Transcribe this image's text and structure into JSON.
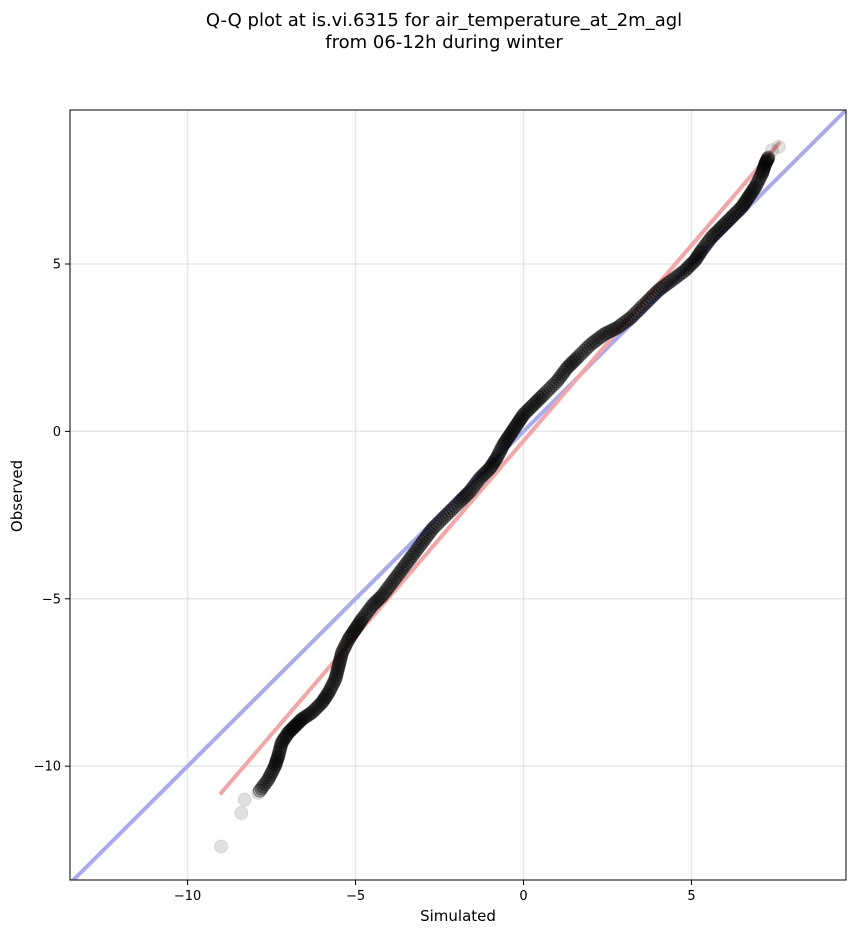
{
  "chart_data": {
    "type": "scatter",
    "title_lines": [
      "Q-Q plot at is.vi.6315 for air_temperature_at_2m_agl",
      "from 06-12h during winter"
    ],
    "xlabel": "Simulated",
    "ylabel": "Observed",
    "xlim": [
      -13.5,
      9.6
    ],
    "ylim": [
      -13.4,
      9.6
    ],
    "xticks": [
      -10,
      -5,
      0,
      5
    ],
    "yticks": [
      -10,
      -5,
      0,
      5
    ],
    "xtick_labels": [
      "−10",
      "−5",
      "0",
      "5"
    ],
    "ytick_labels": [
      "−10",
      "−5",
      "0",
      "5"
    ],
    "grid": true,
    "reference_line": {
      "description": "1:1 line",
      "color": "#aaaaf0",
      "points": [
        [
          -13.5,
          -13.5
        ],
        [
          9.6,
          9.6
        ]
      ]
    },
    "fit_line": {
      "color": "#f4a6a6",
      "points": [
        [
          -9.0,
          -10.8
        ],
        [
          7.6,
          8.6
        ]
      ]
    },
    "point_color": "#000000",
    "quantiles": [
      [
        -9.0,
        -12.4
      ],
      [
        -8.4,
        -11.4
      ],
      [
        -8.3,
        -11.0
      ],
      [
        -7.9,
        -10.8
      ],
      [
        -7.6,
        -10.4
      ],
      [
        -7.4,
        -10.0
      ],
      [
        -7.3,
        -9.7
      ],
      [
        -7.2,
        -9.3
      ],
      [
        -7.0,
        -9.0
      ],
      [
        -6.8,
        -8.8
      ],
      [
        -6.6,
        -8.6
      ],
      [
        -6.3,
        -8.4
      ],
      [
        -6.0,
        -8.1
      ],
      [
        -5.8,
        -7.8
      ],
      [
        -5.6,
        -7.4
      ],
      [
        -5.5,
        -7.0
      ],
      [
        -5.4,
        -6.6
      ],
      [
        -5.2,
        -6.2
      ],
      [
        -5.0,
        -5.9
      ],
      [
        -4.8,
        -5.6
      ],
      [
        -4.5,
        -5.2
      ],
      [
        -4.2,
        -4.9
      ],
      [
        -3.9,
        -4.5
      ],
      [
        -3.6,
        -4.1
      ],
      [
        -3.3,
        -3.7
      ],
      [
        -3.0,
        -3.3
      ],
      [
        -2.7,
        -2.9
      ],
      [
        -2.3,
        -2.5
      ],
      [
        -1.9,
        -2.1
      ],
      [
        -1.6,
        -1.8
      ],
      [
        -1.3,
        -1.4
      ],
      [
        -1.0,
        -1.1
      ],
      [
        -0.8,
        -0.8
      ],
      [
        -0.6,
        -0.4
      ],
      [
        -0.4,
        -0.1
      ],
      [
        -0.2,
        0.2
      ],
      [
        0.0,
        0.5
      ],
      [
        0.3,
        0.8
      ],
      [
        0.6,
        1.1
      ],
      [
        1.0,
        1.5
      ],
      [
        1.3,
        1.9
      ],
      [
        1.6,
        2.2
      ],
      [
        2.0,
        2.6
      ],
      [
        2.4,
        2.9
      ],
      [
        2.8,
        3.1
      ],
      [
        3.2,
        3.4
      ],
      [
        3.6,
        3.8
      ],
      [
        4.0,
        4.2
      ],
      [
        4.4,
        4.5
      ],
      [
        4.8,
        4.8
      ],
      [
        5.1,
        5.1
      ],
      [
        5.3,
        5.4
      ],
      [
        5.6,
        5.8
      ],
      [
        5.9,
        6.1
      ],
      [
        6.2,
        6.4
      ],
      [
        6.5,
        6.7
      ],
      [
        6.7,
        7.0
      ],
      [
        6.9,
        7.3
      ],
      [
        7.1,
        7.7
      ],
      [
        7.2,
        8.0
      ],
      [
        7.3,
        8.2
      ],
      [
        7.4,
        8.4
      ],
      [
        7.6,
        8.5
      ]
    ]
  }
}
